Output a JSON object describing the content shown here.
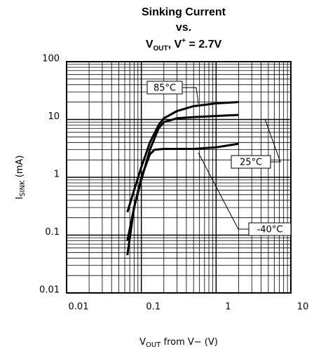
{
  "chart_data": {
    "type": "line",
    "title": [
      "Sinking Current",
      "vs."
    ],
    "title_line3": [
      "V",
      "OUT",
      ", V",
      "+",
      " = 2.7V"
    ],
    "xlabel": [
      "V",
      "OUT",
      " from V− (V)"
    ],
    "ylabel": [
      "I",
      "SINK",
      " (mA)"
    ],
    "xscale": "log",
    "yscale": "log",
    "grid": true,
    "xlim": [
      0.01,
      10
    ],
    "ylim": [
      0.01,
      100
    ],
    "xticks": [
      0.01,
      0.1,
      1,
      10
    ],
    "yticks": [
      0.01,
      0.1,
      1,
      10,
      100
    ],
    "series": [
      {
        "name": "85°C",
        "color": "#000000",
        "x": [
          0.065,
          0.08,
          0.1,
          0.13,
          0.17,
          0.2,
          0.3,
          0.5,
          1,
          2
        ],
        "values": [
          0.25,
          0.6,
          1.5,
          4,
          8,
          10.5,
          14,
          17,
          19,
          20
        ]
      },
      {
        "name": "25°C",
        "color": "#000000",
        "x": [
          0.065,
          0.08,
          0.1,
          0.13,
          0.17,
          0.2,
          0.3,
          0.5,
          1,
          2
        ],
        "values": [
          0.08,
          0.3,
          0.9,
          3,
          7,
          9,
          10.5,
          11,
          11.5,
          12
        ]
      },
      {
        "name": "-40°C",
        "color": "#000000",
        "x": [
          0.065,
          0.08,
          0.1,
          0.13,
          0.15,
          0.2,
          0.5,
          1,
          2
        ],
        "values": [
          0.045,
          0.3,
          1,
          2.5,
          3,
          3.1,
          3.1,
          3.3,
          3.8
        ]
      }
    ]
  }
}
